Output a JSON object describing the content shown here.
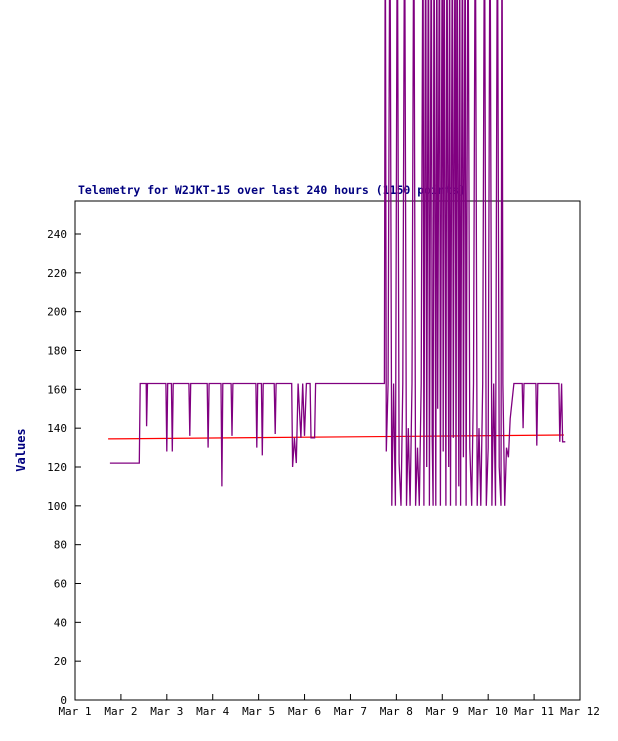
{
  "page": {
    "background": "#ffffff"
  },
  "chart_data": {
    "type": "line",
    "title": "Telemetry for W2JKT-15 over last 240 hours (1150 points)",
    "xlabel": "",
    "ylabel": "Values",
    "x_unit": "days since Mar 1",
    "x_axis": {
      "tick_labels": [
        "Mar 1",
        "Mar 2",
        "Mar 3",
        "Mar 4",
        "Mar 5",
        "Mar 6",
        "Mar 7",
        "Mar 8",
        "Mar 9",
        "Mar 10",
        "Mar 11",
        "Mar 12"
      ],
      "range_days": [
        0,
        11
      ]
    },
    "y_axis": {
      "ticks": [
        0,
        20,
        40,
        60,
        80,
        100,
        120,
        140,
        160,
        180,
        200,
        220,
        240
      ],
      "range": [
        0,
        257
      ]
    },
    "grid": false,
    "legend": "none",
    "colors": {
      "telemetry": "#800080",
      "threshold": "#ff0000",
      "title": "#000080",
      "axis": "#000000",
      "border": "#000000"
    },
    "series": [
      {
        "name": "threshold-line",
        "color": "#ff0000",
        "width": 1.2,
        "points": [
          [
            0.72,
            134.5
          ],
          [
            10.65,
            136.5
          ]
        ]
      },
      {
        "name": "telemetry-values",
        "color": "#800080",
        "width": 1.3,
        "points": [
          [
            0.76,
            122
          ],
          [
            1.4,
            122
          ],
          [
            1.42,
            163
          ],
          [
            1.55,
            163
          ],
          [
            1.56,
            141
          ],
          [
            1.58,
            163
          ],
          [
            1.98,
            163
          ],
          [
            2.0,
            128
          ],
          [
            2.02,
            163
          ],
          [
            2.1,
            163
          ],
          [
            2.12,
            128
          ],
          [
            2.14,
            163
          ],
          [
            2.48,
            163
          ],
          [
            2.5,
            136
          ],
          [
            2.52,
            163
          ],
          [
            2.88,
            163
          ],
          [
            2.9,
            130
          ],
          [
            2.92,
            163
          ],
          [
            3.18,
            163
          ],
          [
            3.2,
            110
          ],
          [
            3.22,
            163
          ],
          [
            3.4,
            163
          ],
          [
            3.42,
            136
          ],
          [
            3.44,
            163
          ],
          [
            3.94,
            163
          ],
          [
            3.96,
            130
          ],
          [
            3.98,
            163
          ],
          [
            4.06,
            163
          ],
          [
            4.08,
            126
          ],
          [
            4.1,
            163
          ],
          [
            4.34,
            163
          ],
          [
            4.36,
            137
          ],
          [
            4.38,
            163
          ],
          [
            4.72,
            163
          ],
          [
            4.74,
            120
          ],
          [
            4.78,
            135
          ],
          [
            4.82,
            122
          ],
          [
            4.86,
            163
          ],
          [
            4.92,
            135
          ],
          [
            4.96,
            163
          ],
          [
            5.0,
            136
          ],
          [
            5.04,
            163
          ],
          [
            5.12,
            163
          ],
          [
            5.14,
            135
          ],
          [
            5.22,
            135
          ],
          [
            5.24,
            163
          ],
          [
            6.74,
            163
          ],
          [
            6.76,
            420
          ],
          [
            6.78,
            128
          ],
          [
            6.82,
            163
          ],
          [
            6.86,
            420
          ],
          [
            6.9,
            100
          ],
          [
            6.94,
            163
          ],
          [
            6.98,
            100
          ],
          [
            7.02,
            420
          ],
          [
            7.06,
            122
          ],
          [
            7.1,
            100
          ],
          [
            7.14,
            163
          ],
          [
            7.18,
            420
          ],
          [
            7.22,
            100
          ],
          [
            7.26,
            140
          ],
          [
            7.3,
            100
          ],
          [
            7.34,
            163
          ],
          [
            7.38,
            420
          ],
          [
            7.42,
            100
          ],
          [
            7.46,
            130
          ],
          [
            7.5,
            100
          ],
          [
            7.54,
            163
          ],
          [
            7.58,
            420
          ],
          [
            7.6,
            100
          ],
          [
            7.64,
            420
          ],
          [
            7.66,
            120
          ],
          [
            7.7,
            420
          ],
          [
            7.72,
            100
          ],
          [
            7.76,
            420
          ],
          [
            7.78,
            135
          ],
          [
            7.8,
            100
          ],
          [
            7.82,
            420
          ],
          [
            7.86,
            100
          ],
          [
            7.88,
            420
          ],
          [
            7.9,
            150
          ],
          [
            7.94,
            420
          ],
          [
            7.96,
            100
          ],
          [
            8.0,
            420
          ],
          [
            8.02,
            128
          ],
          [
            8.04,
            420
          ],
          [
            8.08,
            100
          ],
          [
            8.1,
            420
          ],
          [
            8.14,
            120
          ],
          [
            8.16,
            420
          ],
          [
            8.18,
            100
          ],
          [
            8.22,
            420
          ],
          [
            8.24,
            135
          ],
          [
            8.28,
            420
          ],
          [
            8.3,
            100
          ],
          [
            8.32,
            420
          ],
          [
            8.36,
            110
          ],
          [
            8.38,
            420
          ],
          [
            8.4,
            100
          ],
          [
            8.44,
            420
          ],
          [
            8.46,
            125
          ],
          [
            8.5,
            420
          ],
          [
            8.52,
            100
          ],
          [
            8.56,
            420
          ],
          [
            8.6,
            130
          ],
          [
            8.64,
            100
          ],
          [
            8.68,
            163
          ],
          [
            8.72,
            420
          ],
          [
            8.76,
            100
          ],
          [
            8.8,
            140
          ],
          [
            8.84,
            100
          ],
          [
            8.88,
            163
          ],
          [
            8.92,
            420
          ],
          [
            8.96,
            100
          ],
          [
            9.0,
            130
          ],
          [
            9.04,
            420
          ],
          [
            9.08,
            100
          ],
          [
            9.12,
            163
          ],
          [
            9.16,
            100
          ],
          [
            9.2,
            420
          ],
          [
            9.24,
            120
          ],
          [
            9.28,
            100
          ],
          [
            9.3,
            420
          ],
          [
            9.32,
            163
          ],
          [
            9.36,
            100
          ],
          [
            9.4,
            130
          ],
          [
            9.44,
            125
          ],
          [
            9.48,
            145
          ],
          [
            9.56,
            163
          ],
          [
            9.74,
            163
          ],
          [
            9.76,
            140
          ],
          [
            9.78,
            163
          ],
          [
            10.04,
            163
          ],
          [
            10.06,
            131
          ],
          [
            10.08,
            163
          ],
          [
            10.54,
            163
          ],
          [
            10.56,
            133
          ],
          [
            10.6,
            163
          ],
          [
            10.62,
            133
          ],
          [
            10.68,
            133
          ]
        ]
      }
    ]
  }
}
